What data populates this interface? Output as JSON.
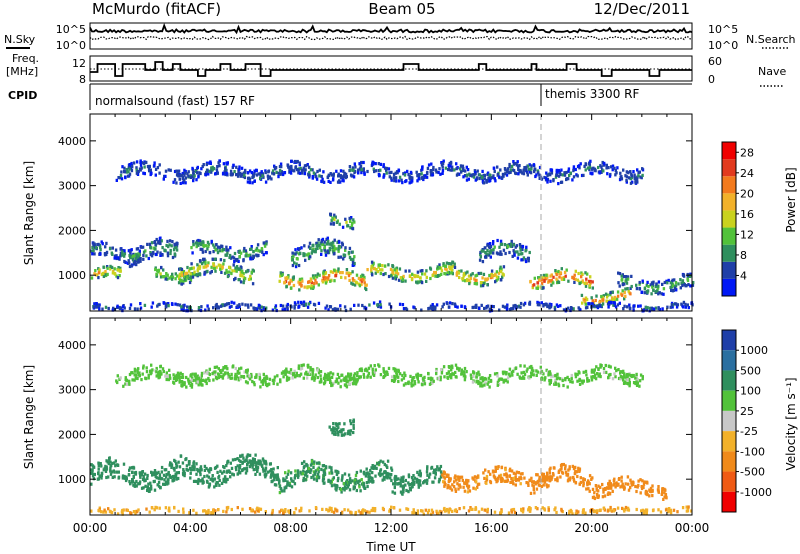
{
  "header": {
    "station": "McMurdo (fitACF)",
    "beam": "Beam 05",
    "date": "12/Dec/2011"
  },
  "noise_panel": {
    "left_label": "N.Sky",
    "right_label": "N.Search",
    "left_ticks": [
      "10^5",
      "10^0"
    ],
    "right_ticks": [
      "10^5",
      "10^0"
    ]
  },
  "freq_panel": {
    "left_label_1": "Freq.",
    "left_label_2": "[MHz]",
    "right_label": "Nave",
    "left_ticks": [
      "12",
      "8"
    ],
    "right_ticks": [
      "60",
      "0"
    ]
  },
  "cpid": {
    "label": "CPID",
    "mode_1": "normalsound (fast) 157 RF",
    "mode_2": "themis 3300 RF"
  },
  "colors": {
    "power": [
      "#0018f5",
      "#1f3fa8",
      "#2f8f5e",
      "#52c23a",
      "#c9d21e",
      "#f2b12a",
      "#f37a1d",
      "#e23a1e",
      "#f00000"
    ],
    "velocity": [
      "#1f3fa8",
      "#2a6fa0",
      "#2f8f5e",
      "#52c23a",
      "#c8c8c8",
      "#f2b12a",
      "#f08a1a",
      "#ef5a14",
      "#f00000"
    ]
  },
  "chart_data": [
    {
      "type": "heatmap",
      "title": "Power",
      "xlabel": "",
      "ylabel": "Slant Range [km]",
      "x_ticks": [
        "00:00",
        "04:00",
        "08:00",
        "12:00",
        "16:00",
        "20:00",
        "00:00"
      ],
      "y_ticks": [
        1000,
        2000,
        3000,
        4000
      ],
      "ylim": [
        200,
        4600
      ],
      "colorbar": {
        "label": "Power [dB]",
        "range": [
          0,
          30
        ],
        "ticks": [
          4,
          8,
          12,
          16,
          20,
          24,
          28
        ]
      },
      "bands": [
        {
          "t0": 0.0,
          "t1": 1.2,
          "r": 1000,
          "w": 250,
          "p": 18
        },
        {
          "t0": 0.0,
          "t1": 2.0,
          "r": 1500,
          "w": 300,
          "p": 7
        },
        {
          "t0": 1.5,
          "t1": 3.5,
          "r": 1500,
          "w": 400,
          "p": 9
        },
        {
          "t0": 2.5,
          "t1": 4.0,
          "r": 1000,
          "w": 250,
          "p": 13
        },
        {
          "t0": 3.5,
          "t1": 6.5,
          "r": 1100,
          "w": 350,
          "p": 15
        },
        {
          "t0": 4.0,
          "t1": 7.0,
          "r": 1550,
          "w": 300,
          "p": 10
        },
        {
          "t0": 7.5,
          "t1": 11.0,
          "r": 900,
          "w": 300,
          "p": 22
        },
        {
          "t0": 8.0,
          "t1": 10.5,
          "r": 1500,
          "w": 400,
          "p": 10
        },
        {
          "t0": 9.5,
          "t1": 10.5,
          "r": 2250,
          "w": 250,
          "p": 12
        },
        {
          "t0": 11.0,
          "t1": 14.5,
          "r": 1050,
          "w": 300,
          "p": 17
        },
        {
          "t0": 14.5,
          "t1": 16.5,
          "r": 1000,
          "w": 300,
          "p": 18
        },
        {
          "t0": 15.5,
          "t1": 17.5,
          "r": 1500,
          "w": 350,
          "p": 9
        },
        {
          "t0": 17.5,
          "t1": 20.0,
          "r": 900,
          "w": 300,
          "p": 24
        },
        {
          "t0": 19.5,
          "t1": 21.5,
          "r": 500,
          "w": 250,
          "p": 20
        },
        {
          "t0": 21.0,
          "t1": 24.0,
          "r": 800,
          "w": 300,
          "p": 10
        },
        {
          "t0": 0.0,
          "t1": 24.0,
          "r": 300,
          "w": 120,
          "p": 6
        },
        {
          "t0": 1.0,
          "t1": 22.0,
          "r": 3300,
          "w": 300,
          "p": 6
        }
      ]
    },
    {
      "type": "heatmap",
      "title": "Velocity",
      "xlabel": "Time UT",
      "ylabel": "Slant Range [km]",
      "x_ticks": [
        "00:00",
        "04:00",
        "08:00",
        "12:00",
        "16:00",
        "20:00",
        "00:00"
      ],
      "y_ticks": [
        1000,
        2000,
        3000,
        4000
      ],
      "ylim": [
        200,
        4600
      ],
      "colorbar": {
        "label": "Velocity [m s⁻¹]",
        "ticks": [
          "1000",
          "500",
          "100",
          "25",
          "-25",
          "-100",
          "-500",
          "-1000"
        ]
      },
      "bands": [
        {
          "t0": 0.0,
          "t1": 3.5,
          "r": 1100,
          "w": 450,
          "v": 300
        },
        {
          "t0": 3.5,
          "t1": 7.5,
          "r": 1200,
          "w": 450,
          "v": 200
        },
        {
          "t0": 7.5,
          "t1": 12.0,
          "r": 1050,
          "w": 450,
          "v": 150
        },
        {
          "t0": 9.5,
          "t1": 10.5,
          "r": 2200,
          "w": 300,
          "v": 300
        },
        {
          "t0": 12.0,
          "t1": 14.0,
          "r": 1000,
          "w": 400,
          "v": 200
        },
        {
          "t0": 14.0,
          "t1": 17.5,
          "r": 1000,
          "w": 350,
          "v": -150
        },
        {
          "t0": 17.5,
          "t1": 20.0,
          "r": 1000,
          "w": 400,
          "v": -300
        },
        {
          "t0": 20.0,
          "t1": 23.0,
          "r": 800,
          "w": 300,
          "v": -200
        },
        {
          "t0": 0.0,
          "t1": 24.0,
          "r": 300,
          "w": 100,
          "v": -80
        },
        {
          "t0": 1.0,
          "t1": 22.0,
          "r": 3300,
          "w": 300,
          "v": 40
        }
      ]
    }
  ]
}
